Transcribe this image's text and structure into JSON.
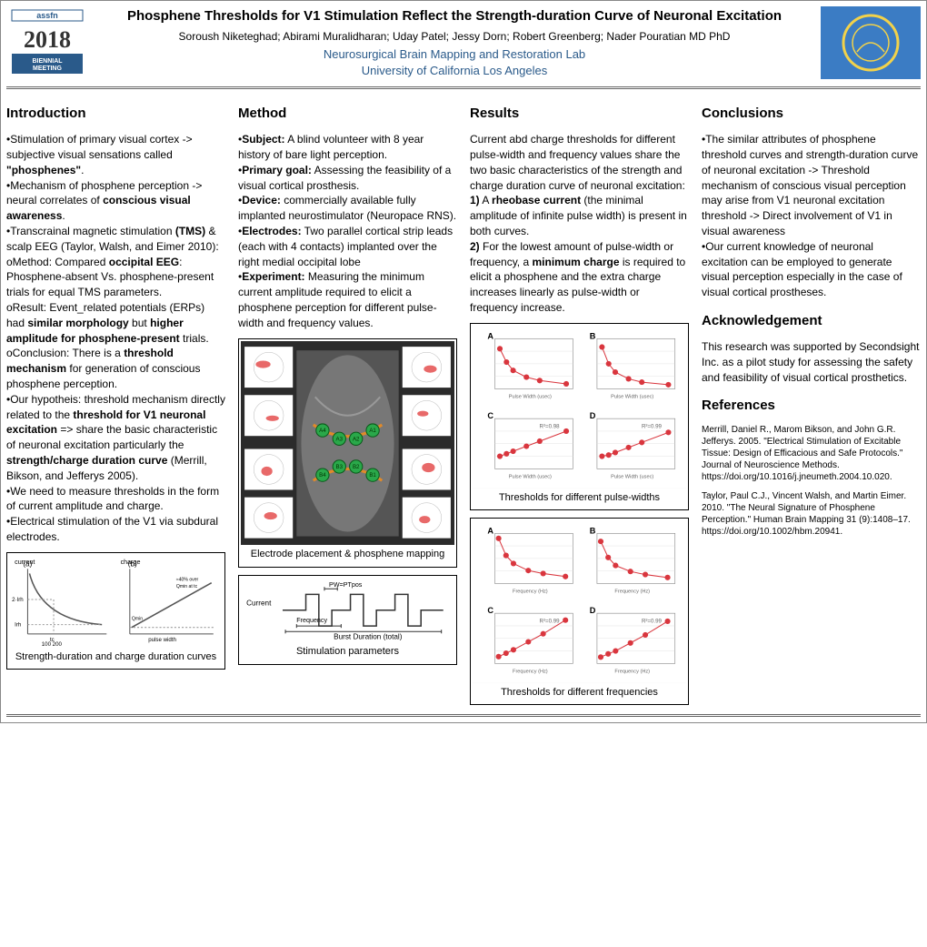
{
  "header": {
    "title": "Phosphene Thresholds for V1 Stimulation Reflect the Strength-duration Curve of Neuronal Excitation",
    "authors": "Soroush Niketeghad; Abirami Muralidharan; Uday Patel; Jessy Dorn; Robert Greenberg; Nader Pouratian MD PhD",
    "lab": "Neurosurgical Brain Mapping and Restoration Lab",
    "university": "University of California Los Angeles",
    "left_logo_text_top": "assfn",
    "left_logo_text_year": "2018",
    "left_logo_text_bottom": "BIENNIAL MEETING",
    "right_logo_bg": "#3b7cc4",
    "right_logo_ring": "#f2d24a"
  },
  "intro": {
    "heading": "Introduction",
    "html": "•Stimulation of primary visual cortex -> subjective visual sensations called <b>\"phosphenes\"</b>.<br>•Mechanism of phosphene perception -> neural correlates of <b>conscious visual awareness</b>.<br>•Transcrainal magnetic stimulation <b>(TMS)</b> & scalp EEG (Taylor, Walsh, and Eimer 2010):<br>oMethod: Compared <b>occipital EEG</b>: Phosphene-absent Vs. phosphene-present trials for equal TMS parameters.<br>oResult: Event_related potentials (ERPs) had <b>similar morphology</b> but <b>higher amplitude for phosphene-present</b> trials.<br>oConclusion: There is a  <b>threshold mechanism</b> for generation of conscious phosphene perception.<br>•Our hypotheis: threshold mechanism directly related to the <b>threshold for V1 neuronal excitation</b> => share the basic characteristic of neuronal excitation particularly the <b>strength/charge duration curve</b> (Merrill, Bikson, and Jefferys 2005).<br>•We need to measure thresholds in the form of current amplitude and charge.<br>•Electrical stimulation of the V1 via subdural electrodes."
  },
  "method": {
    "heading": "Method",
    "html": "•<b>Subject:</b> A blind volunteer with 8 year history of bare light perception.<br>•<b>Primary goal:</b> Assessing the feasibility of a visual cortical prosthesis.<br>•<b>Device:</b> commercially available fully implanted neurostimulator (Neuropace RNS).<br>•<b>Electrodes:</b> Two parallel cortical strip leads (each with 4 contacts) implanted over the right medial occipital lobe<br>•<b>Experiment:</b> Measuring the minimum current amplitude required to elicit a phosphene perception for different pulse-width and frequency values."
  },
  "results": {
    "heading": "Results",
    "html": "Current abd charge thresholds for different pulse-width and frequency values share the two basic characteristics of the strength and charge duration curve of neuronal excitation:<br><b>1)</b> A <b>rheobase current</b> (the minimal amplitude of infinite pulse width) is present in both curves.<br><b>2)</b> For the lowest amount of pulse-width or frequency, a <b>minimum charge</b> is required to elicit a phosphene and the extra charge increases linearly as pulse-width or frequency increase."
  },
  "conclusions": {
    "heading": "Conclusions",
    "html": "•The similar attributes of phosphene threshold curves and strength-duration curve of neuronal excitation -> Threshold mechanism of conscious visual perception may arise from V1 neuronal excitation threshold -> Direct involvement of V1 in visual  awareness<br>•Our current knowledge of neuronal excitation can be employed to generate visual perception especially in the case of visual cortical prostheses."
  },
  "ack": {
    "heading": "Acknowledgement",
    "text": "This research was supported by Secondsight Inc. as a pilot study for assessing the safety and feasibility of visual cortical prosthetics."
  },
  "refs": {
    "heading": "References",
    "r1": "Merrill, Daniel R., Marom Bikson, and John G.R. Jefferys. 2005. \"Electrical Stimulation of Excitable Tissue: Design of Efficacious and Safe Protocols.\" Journal of Neuroscience Methods. https://doi.org/10.1016/j.jneumeth.2004.10.020.",
    "r2": "Taylor, Paul C.J., Vincent Walsh, and Martin Eimer. 2010. \"The Neural Signature of Phosphene Perception.\" Human Brain Mapping 31 (9):1408–17. https://doi.org/10.1002/hbm.20941."
  },
  "figs": {
    "sd_caption": "Strength-duration and charge duration curves",
    "electrode_caption": "Electrode placement & phosphene mapping",
    "stim_caption": "Stimulation parameters",
    "pw_caption": "Thresholds for different pulse-widths",
    "freq_caption": "Thresholds for different frequencies",
    "sd_curve": {
      "panel_a_label": "(a)",
      "panel_b_label": "(b)",
      "ylabel_a": "current",
      "ylabel_b": "charge",
      "xlabel": "pulse width (usec)",
      "xticks": [
        "100",
        "200"
      ],
      "a_curve_color": "#555",
      "b_line_color": "#555",
      "annot_a_top": "2·Irh",
      "annot_a_bot": "Irh",
      "annot_b_right": "≈ 40% over Qmin at tc",
      "annot_b_left": "Qmin = Irh·tc",
      "annot_b_mid": "1/tc",
      "tc_label": "tc"
    },
    "electrode": {
      "bg": "#2b2b2b",
      "node_fill": "#2aa84a",
      "node_stroke": "#0a5a1a",
      "lead_color": "#e08a2a",
      "phosphene_color": "#e34444",
      "node_labels": [
        "A4",
        "A3",
        "A2",
        "A1",
        "B4",
        "B3",
        "B2",
        "B1"
      ]
    },
    "stim": {
      "line_color": "#333",
      "label_current": "Current",
      "label_freq": "Frequency",
      "label_pw": "PW=PTpos",
      "label_burst": "Burst Duration (total)"
    },
    "charts": {
      "panel_labels": [
        "A",
        "B",
        "C",
        "D"
      ],
      "marker_color": "#d9363e",
      "marker_size": 3,
      "line_color": "#d9363e",
      "grid_color": "#dddddd",
      "axis_color": "#888888",
      "bg": "#ffffff",
      "font_size": 7,
      "pw_x_label": "Pulse Width (usec)",
      "pw_y_top": "Current Threshold (mA)",
      "pw_y_bot": "Charge (uC)",
      "freq_x_label": "Frequency (Hz)",
      "freq_y_top": "Current Threshold (mA)",
      "freq_y_bot": "Charge (uC)",
      "pw_top_A": {
        "x": [
          80,
          120,
          160,
          240,
          320,
          480
        ],
        "y": [
          5.8,
          4.2,
          3.2,
          2.4,
          2.0,
          1.6
        ],
        "xlim": [
          50,
          520
        ],
        "ylim": [
          1,
          7
        ]
      },
      "pw_top_B": {
        "x": [
          80,
          120,
          160,
          240,
          320,
          480
        ],
        "y": [
          6.0,
          4.0,
          3.0,
          2.2,
          1.8,
          1.5
        ],
        "xlim": [
          50,
          520
        ],
        "ylim": [
          1,
          7
        ]
      },
      "pw_bot_C": {
        "x": [
          80,
          120,
          160,
          240,
          320,
          480
        ],
        "y": [
          0.5,
          0.6,
          0.7,
          0.9,
          1.1,
          1.5
        ],
        "xlim": [
          50,
          520
        ],
        "ylim": [
          0,
          2
        ],
        "fit": "R²=0.98"
      },
      "pw_bot_D": {
        "x": [
          80,
          120,
          160,
          240,
          320,
          480
        ],
        "y": [
          0.5,
          0.55,
          0.65,
          0.85,
          1.05,
          1.45
        ],
        "xlim": [
          50,
          520
        ],
        "ylim": [
          0,
          2
        ],
        "fit": "R²=0.99"
      },
      "fq_top_A": {
        "x": [
          20,
          40,
          60,
          100,
          140,
          200
        ],
        "y": [
          5.5,
          3.8,
          3.0,
          2.3,
          2.0,
          1.7
        ],
        "xlim": [
          10,
          220
        ],
        "ylim": [
          1,
          6
        ]
      },
      "fq_top_B": {
        "x": [
          20,
          40,
          60,
          100,
          140,
          200
        ],
        "y": [
          5.2,
          3.6,
          2.8,
          2.2,
          1.9,
          1.6
        ],
        "xlim": [
          10,
          220
        ],
        "ylim": [
          1,
          6
        ]
      },
      "fq_bot_C": {
        "x": [
          20,
          40,
          60,
          100,
          140,
          200
        ],
        "y": [
          0.3,
          0.45,
          0.6,
          0.95,
          1.3,
          1.9
        ],
        "xlim": [
          10,
          220
        ],
        "ylim": [
          0,
          2.2
        ],
        "fit": "R²=0.99"
      },
      "fq_bot_D": {
        "x": [
          20,
          40,
          60,
          100,
          140,
          200
        ],
        "y": [
          0.28,
          0.42,
          0.55,
          0.9,
          1.25,
          1.85
        ],
        "xlim": [
          10,
          220
        ],
        "ylim": [
          0,
          2.2
        ],
        "fit": "R²=0.99"
      }
    }
  }
}
